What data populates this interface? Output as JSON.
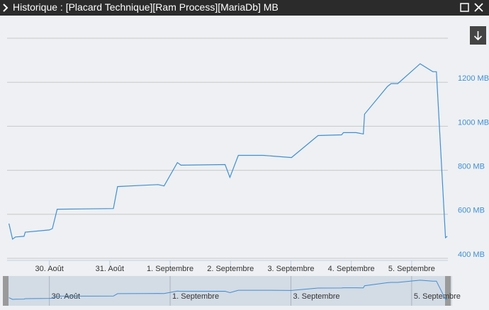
{
  "window": {
    "title": "Historique : [Placard Technique][Ram Process][MariaDb] MB"
  },
  "chart_data": {
    "type": "line",
    "color": "#3f8fd2",
    "x": [
      -0.67,
      -0.61,
      -0.56,
      -0.42,
      -0.4,
      0,
      0.05,
      0.13,
      1.06,
      1.13,
      1.58,
      1.8,
      1.9,
      2.12,
      2.18,
      2.91,
      2.99,
      3.13,
      3.54,
      4.01,
      4.45,
      4.84,
      4.87,
      5.08,
      5.2,
      5.22,
      5.6,
      5.66,
      5.77,
      6.14,
      6.35,
      6.41,
      6.56,
      6.59
    ],
    "values": [
      558,
      487,
      497,
      500,
      519,
      529,
      535,
      623,
      626,
      726,
      732,
      735,
      729,
      835,
      823,
      826,
      768,
      868,
      868,
      858,
      958,
      961,
      971,
      971,
      965,
      1055,
      1181,
      1194,
      1194,
      1284,
      1248,
      1248,
      494,
      500
    ],
    "xlim": [
      -0.7,
      6.6
    ],
    "xticks": [
      {
        "value": 0,
        "label": "30. Août"
      },
      {
        "value": 1,
        "label": "31. Août"
      },
      {
        "value": 2,
        "label": "1. Septembre"
      },
      {
        "value": 3,
        "label": "2. Septembre"
      },
      {
        "value": 4,
        "label": "3. Septembre"
      },
      {
        "value": 5,
        "label": "4. Septembre"
      },
      {
        "value": 6,
        "label": "5. Septembre"
      }
    ],
    "ylim": [
      400,
      1400
    ],
    "yticks": [
      {
        "value": 400,
        "label": "400 MB"
      },
      {
        "value": 600,
        "label": "600 MB"
      },
      {
        "value": 800,
        "label": "800 MB"
      },
      {
        "value": 1000,
        "label": "1000 MB"
      },
      {
        "value": 1200,
        "label": "1200 MB"
      }
    ],
    "grid": true
  }
}
